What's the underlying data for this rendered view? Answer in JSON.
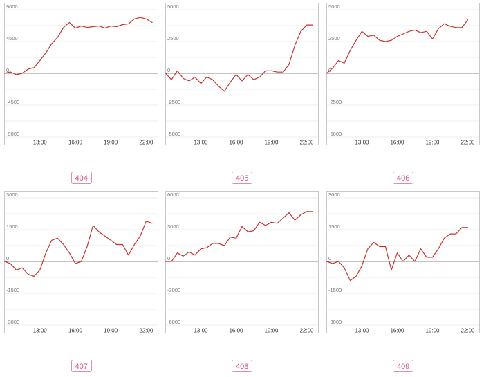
{
  "colors": {
    "line": "#c9322f",
    "badge_border": "#e58aa7",
    "badge_text": "#d0557d"
  },
  "chart_data": [
    {
      "type": "line",
      "label": "404",
      "x_ticks": [
        "13:00",
        "16:00",
        "19:00",
        "22:00"
      ],
      "y_ticks": [
        9000,
        4500,
        0,
        -4500,
        -9000
      ],
      "ylim": [
        -9000,
        9000
      ],
      "xlim": [
        10.0,
        23.0
      ],
      "grid": true,
      "x": [
        10.0,
        10.5,
        11.0,
        11.5,
        12.0,
        12.5,
        13.0,
        13.5,
        14.0,
        14.5,
        15.0,
        15.5,
        16.0,
        16.5,
        17.0,
        17.5,
        18.0,
        18.5,
        19.0,
        19.5,
        20.0,
        20.5,
        21.0,
        21.5,
        22.0,
        22.5
      ],
      "series": [
        {
          "values": [
            0,
            200,
            -200,
            0,
            600,
            800,
            1800,
            2900,
            4200,
            5100,
            6500,
            7200,
            6400,
            6700,
            6500,
            6600,
            6700,
            6400,
            6700,
            6600,
            6900,
            7000,
            7700,
            7900,
            7700,
            7200
          ]
        }
      ]
    },
    {
      "type": "line",
      "label": "405",
      "x_ticks": [
        "13:00",
        "16:00",
        "19:00",
        "22:00"
      ],
      "y_ticks": [
        5000,
        2500,
        0,
        -2500,
        -5000
      ],
      "ylim": [
        -5000,
        5000
      ],
      "xlim": [
        10.0,
        23.0
      ],
      "grid": true,
      "x": [
        10.0,
        10.5,
        11.0,
        11.5,
        12.0,
        12.5,
        13.0,
        13.5,
        14.0,
        14.5,
        15.0,
        15.5,
        16.0,
        16.5,
        17.0,
        17.5,
        18.0,
        18.5,
        19.0,
        19.5,
        20.0,
        20.5,
        21.0,
        21.5,
        22.0,
        22.5
      ],
      "series": [
        {
          "values": [
            0,
            -500,
            200,
            -400,
            -600,
            -300,
            -800,
            -300,
            -500,
            -1000,
            -1400,
            -700,
            -100,
            -600,
            -100,
            -500,
            -300,
            200,
            200,
            100,
            100,
            700,
            2200,
            3300,
            3800,
            3800
          ]
        }
      ]
    },
    {
      "type": "line",
      "label": "406",
      "x_ticks": [
        "13:00",
        "16:00",
        "19:00",
        "22:00"
      ],
      "y_ticks": [
        5000,
        2500,
        0,
        -2500,
        -5000
      ],
      "ylim": [
        -5000,
        5000
      ],
      "xlim": [
        10.0,
        23.0
      ],
      "grid": true,
      "x": [
        10.0,
        10.5,
        11.0,
        11.5,
        12.0,
        12.5,
        13.0,
        13.5,
        14.0,
        14.5,
        15.0,
        15.5,
        16.0,
        16.5,
        17.0,
        17.5,
        18.0,
        18.5,
        19.0,
        19.5,
        20.0,
        20.5,
        21.0,
        21.5,
        22.0
      ],
      "series": [
        {
          "values": [
            0,
            400,
            1000,
            800,
            1800,
            2600,
            3300,
            2900,
            3000,
            2600,
            2500,
            2600,
            2900,
            3100,
            3300,
            3400,
            3200,
            3300,
            2700,
            3500,
            3900,
            3700,
            3600,
            3600,
            4200
          ]
        }
      ]
    },
    {
      "type": "line",
      "label": "407",
      "x_ticks": [
        "13:00",
        "16:00",
        "19:00",
        "22:00"
      ],
      "y_ticks": [
        3000,
        1500,
        0,
        -1500,
        -3000
      ],
      "ylim": [
        -3000,
        3000
      ],
      "xlim": [
        10.0,
        23.0
      ],
      "grid": true,
      "x": [
        10.0,
        10.5,
        11.0,
        11.5,
        12.0,
        12.5,
        13.0,
        13.5,
        14.0,
        14.5,
        15.0,
        15.5,
        16.0,
        16.5,
        17.0,
        17.5,
        18.0,
        18.5,
        19.0,
        19.5,
        20.0,
        20.5,
        21.0,
        21.5,
        22.0,
        22.5
      ],
      "series": [
        {
          "values": [
            0,
            -100,
            -400,
            -300,
            -600,
            -700,
            -400,
            400,
            1000,
            1100,
            800,
            400,
            -100,
            0,
            700,
            1700,
            1400,
            1200,
            1000,
            800,
            800,
            300,
            800,
            1200,
            1900,
            1800
          ]
        }
      ]
    },
    {
      "type": "line",
      "label": "408",
      "x_ticks": [
        "13:00",
        "16:00",
        "19:00",
        "22:00"
      ],
      "y_ticks": [
        6000,
        3000,
        0,
        -3000,
        -6000
      ],
      "ylim": [
        -6000,
        6000
      ],
      "xlim": [
        10.0,
        23.0
      ],
      "grid": true,
      "x": [
        10.0,
        10.5,
        11.0,
        11.5,
        12.0,
        12.5,
        13.0,
        13.5,
        14.0,
        14.5,
        15.0,
        15.5,
        16.0,
        16.5,
        17.0,
        17.5,
        18.0,
        18.5,
        19.0,
        19.5,
        20.0,
        20.5,
        21.0,
        21.5,
        22.0,
        22.5
      ],
      "series": [
        {
          "values": [
            0,
            0,
            800,
            500,
            900,
            600,
            1200,
            1300,
            1700,
            1700,
            1500,
            2300,
            2200,
            3300,
            2800,
            2900,
            3700,
            3400,
            3700,
            3600,
            4100,
            4600,
            3900,
            4400,
            4700,
            4700
          ]
        }
      ]
    },
    {
      "type": "line",
      "label": "409",
      "x_ticks": [
        "13:00",
        "16:00",
        "19:00",
        "22:00"
      ],
      "y_ticks": [
        3000,
        1500,
        0,
        -1500,
        -3000
      ],
      "ylim": [
        -3000,
        3000
      ],
      "xlim": [
        10.0,
        23.0
      ],
      "grid": true,
      "x": [
        10.0,
        10.5,
        11.0,
        11.5,
        12.0,
        12.5,
        13.0,
        13.5,
        14.0,
        14.5,
        15.0,
        15.5,
        16.0,
        16.5,
        17.0,
        17.5,
        18.0,
        18.5,
        19.0,
        19.5,
        20.0,
        20.5,
        21.0,
        21.5,
        22.0
      ],
      "series": [
        {
          "values": [
            0,
            -100,
            0,
            -300,
            -900,
            -700,
            -200,
            600,
            900,
            700,
            700,
            -400,
            400,
            0,
            300,
            0,
            600,
            200,
            200,
            600,
            1100,
            1300,
            1300,
            1600,
            1600
          ]
        }
      ]
    }
  ]
}
